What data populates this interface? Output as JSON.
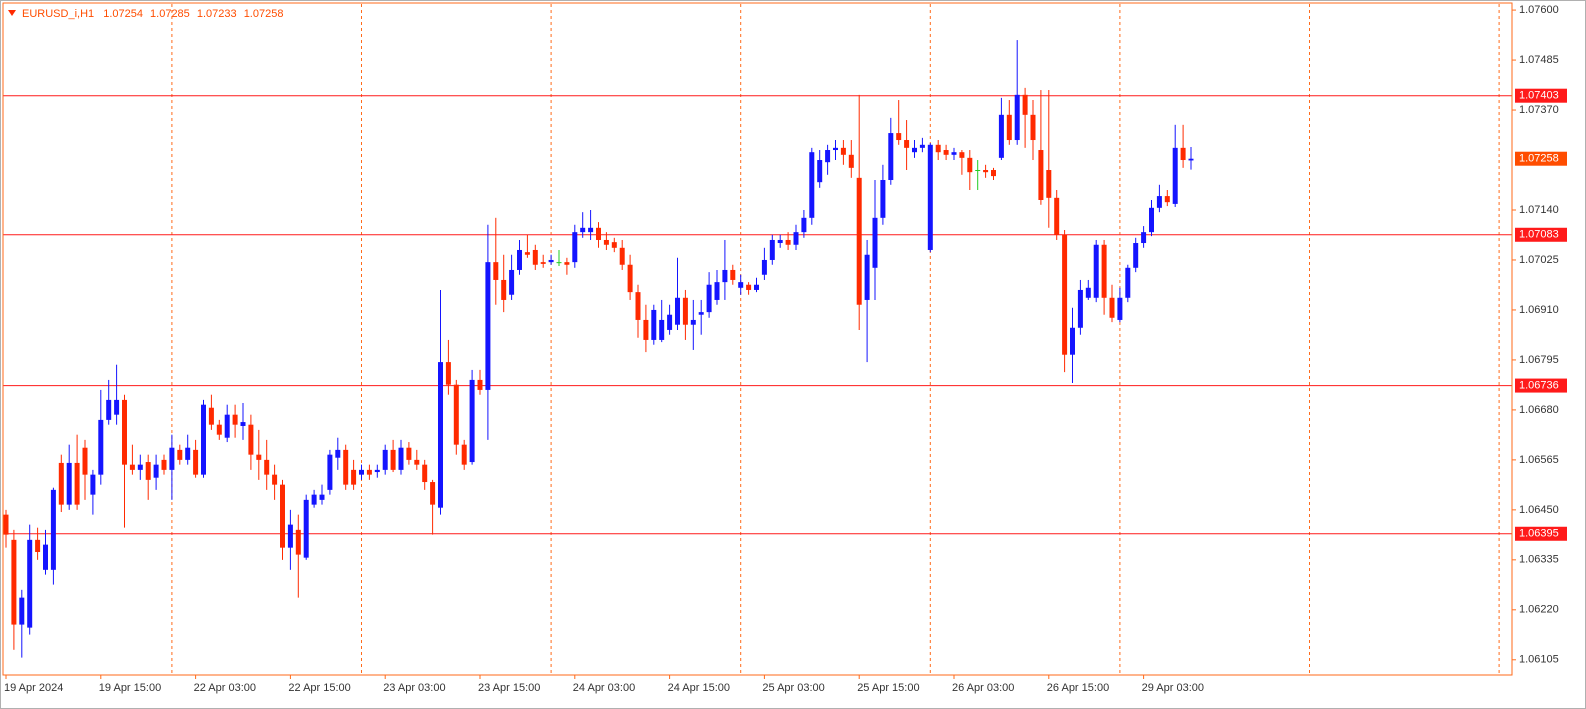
{
  "chart_data": {
    "type": "candlestick",
    "symbol": "EURUSD_i,H1",
    "categories": [
      "19 Apr 2024",
      null,
      null,
      null,
      null,
      null,
      null,
      null,
      null,
      null,
      null,
      null,
      "19 Apr 15:00",
      null,
      null,
      null,
      null,
      null,
      null,
      null,
      null,
      null,
      null,
      null,
      "22 Apr 03:00",
      null,
      null,
      null,
      null,
      null,
      null,
      null,
      null,
      null,
      null,
      null,
      "22 Apr 15:00",
      null,
      null,
      null,
      null,
      null,
      null,
      null,
      null,
      null,
      null,
      null,
      "23 Apr 03:00",
      null,
      null,
      null,
      null,
      null,
      null,
      null,
      null,
      null,
      null,
      null,
      "23 Apr 15:00",
      null,
      null,
      null,
      null,
      null,
      null,
      null,
      null,
      null,
      null,
      null,
      "24 Apr 03:00",
      null,
      null,
      null,
      null,
      null,
      null,
      null,
      null,
      null,
      null,
      null,
      "24 Apr 15:00",
      null,
      null,
      null,
      null,
      null,
      null,
      null,
      null,
      null,
      null,
      null,
      "25 Apr 03:00",
      null,
      null,
      null,
      null,
      null,
      null,
      null,
      null,
      null,
      null,
      null,
      "25 Apr 15:00",
      null,
      null,
      null,
      null,
      null,
      null,
      null,
      null,
      null,
      null,
      null,
      "26 Apr 03:00",
      null,
      null,
      null,
      null,
      null,
      null,
      null,
      null,
      null,
      null,
      null,
      "26 Apr 15:00",
      null,
      null,
      null,
      null,
      null,
      null,
      null,
      null,
      null,
      null,
      null,
      "29 Apr 03:00",
      null,
      null,
      null,
      null,
      null,
      null
    ],
    "open": [
      1.06439,
      1.06381,
      1.06186,
      1.06179,
      1.06381,
      1.06312,
      1.06312,
      1.06558,
      1.06462,
      1.06558,
      1.06593,
      1.06485,
      1.06531,
      1.06657,
      1.06669,
      1.06703,
      1.06554,
      1.06542,
      1.0656,
      1.06524,
      1.06565,
      1.06542,
      1.06588,
      1.06565,
      1.06588,
      1.06531,
      1.06685,
      1.06646,
      1.06616,
      1.06669,
      1.06643,
      1.06646,
      1.06577,
      1.06565,
      1.06531,
      1.06508,
      1.06363,
      1.06404,
      1.0634,
      1.06462,
      1.06473,
      1.06496,
      1.0657,
      1.06588,
      1.06542,
      1.06531,
      1.06542,
      1.06537,
      1.06542,
      1.06588,
      1.06542,
      1.06593,
      1.06565,
      1.06554,
      1.06514,
      1.06455,
      1.0679,
      1.06738,
      1.066,
      1.0656,
      1.06749,
      1.06726,
      1.0702,
      1.06979,
      1.06945,
      1.07002,
      1.07043,
      1.07048,
      1.0702,
      1.0702,
      1.0702,
      1.0702,
      1.0702,
      1.07089,
      1.07089,
      1.07099,
      1.07071,
      1.07066,
      1.07053,
      1.07014,
      1.06951,
      1.06887,
      1.06841,
      1.06841,
      1.06864,
      1.06876,
      1.06938,
      1.06876,
      1.06899,
      1.06905,
      1.06933,
      1.06974,
      1.07002,
      1.06961,
      1.06968,
      1.06956,
      1.06991,
      1.07025,
      1.07064,
      1.07071,
      1.0706,
      1.07089,
      1.07122,
      1.07204,
      1.0725,
      1.07278,
      1.07283,
      1.07267,
      1.07214,
      1.06933,
      1.07007,
      1.07122,
      1.07209,
      1.07317,
      1.07301,
      1.07273,
      1.07283,
      1.07048,
      1.0729,
      1.07278,
      1.07267,
      1.07273,
      1.0726,
      1.07232,
      1.07232,
      1.07232,
      1.0726,
      1.07359,
      1.07301,
      1.07405,
      1.07359,
      1.07278,
      1.07232,
      1.07168,
      1.07083,
      1.06807,
      1.06869,
      1.06938,
      1.06938,
      1.0706,
      1.06938,
      1.06887,
      1.06938,
      1.07007,
      1.07064,
      1.07089,
      1.07145,
      1.07172,
      1.07154,
      1.07283,
      1.07254
    ],
    "high": [
      1.0645,
      1.06404,
      1.06266,
      1.06416,
      1.06409,
      1.06404,
      1.06501,
      1.06577,
      1.066,
      1.06623,
      1.06611,
      1.06542,
      1.06726,
      1.06749,
      1.06784,
      1.06715,
      1.066,
      1.06577,
      1.06577,
      1.06577,
      1.06577,
      1.06623,
      1.066,
      1.06623,
      1.06611,
      1.06703,
      1.06715,
      1.06657,
      1.06692,
      1.06692,
      1.06696,
      1.06669,
      1.06634,
      1.06611,
      1.06554,
      1.06519,
      1.0645,
      1.06439,
      1.06485,
      1.06496,
      1.06508,
      1.06588,
      1.06616,
      1.066,
      1.06565,
      1.06554,
      1.06554,
      1.06554,
      1.066,
      1.06611,
      1.06611,
      1.06606,
      1.06588,
      1.06565,
      1.06519,
      1.06956,
      1.06841,
      1.06749,
      1.06611,
      1.06772,
      1.06772,
      1.07106,
      1.07122,
      1.07037,
      1.07037,
      1.07071,
      1.07083,
      1.0706,
      1.07037,
      1.07037,
      1.07048,
      1.0703,
      1.07106,
      1.07135,
      1.0714,
      1.07112,
      1.07089,
      1.07076,
      1.07071,
      1.07037,
      1.06968,
      1.06922,
      1.06922,
      1.06933,
      1.06922,
      1.0703,
      1.06956,
      1.06933,
      1.06933,
      1.06997,
      1.07002,
      1.07071,
      1.07014,
      1.06991,
      1.06974,
      1.06984,
      1.07053,
      1.07083,
      1.07083,
      1.07089,
      1.07106,
      1.0714,
      1.07283,
      1.07278,
      1.0729,
      1.07301,
      1.07301,
      1.07301,
      1.07405,
      1.07071,
      1.07209,
      1.07244,
      1.07352,
      1.07393,
      1.07347,
      1.07301,
      1.07306,
      1.07294,
      1.07301,
      1.0729,
      1.07283,
      1.07278,
      1.07278,
      1.07255,
      1.07244,
      1.07237,
      1.07398,
      1.07393,
      1.07531,
      1.07421,
      1.07393,
      1.07416,
      1.07416,
      1.07186,
      1.07094,
      1.06915,
      1.06979,
      1.06979,
      1.07071,
      1.07071,
      1.06968,
      1.06961,
      1.07014,
      1.07076,
      1.07103,
      1.07163,
      1.07198,
      1.07186,
      1.07336,
      1.07336,
      1.07285
    ],
    "low": [
      1.06363,
      1.06128,
      1.0611,
      1.06163,
      1.06335,
      1.06301,
      1.06278,
      1.06445,
      1.0645,
      1.0645,
      1.06473,
      1.06439,
      1.06508,
      1.06646,
      1.06646,
      1.06409,
      1.06531,
      1.06519,
      1.06473,
      1.06496,
      1.06531,
      1.06473,
      1.06554,
      1.06554,
      1.06524,
      1.06524,
      1.06634,
      1.06611,
      1.06606,
      1.06616,
      1.06611,
      1.06542,
      1.06519,
      1.06496,
      1.06473,
      1.06335,
      1.06312,
      1.06248,
      1.06335,
      1.06455,
      1.06462,
      1.06485,
      1.06542,
      1.06496,
      1.06496,
      1.06519,
      1.06519,
      1.06524,
      1.06531,
      1.06537,
      1.06531,
      1.06554,
      1.06542,
      1.06496,
      1.06393,
      1.06439,
      1.06715,
      1.06577,
      1.06542,
      1.06554,
      1.06715,
      1.06611,
      1.06922,
      1.06905,
      1.06933,
      1.06991,
      1.0703,
      1.07002,
      1.07007,
      1.07014,
      1.07011,
      1.06991,
      1.07007,
      1.07076,
      1.07071,
      1.07053,
      1.07048,
      1.07043,
      1.07002,
      1.06933,
      1.06846,
      1.06813,
      1.0683,
      1.06836,
      1.06853,
      1.06864,
      1.06841,
      1.06818,
      1.06853,
      1.06892,
      1.06922,
      1.06933,
      1.06968,
      1.06945,
      1.06945,
      1.06951,
      1.06979,
      1.07014,
      1.07053,
      1.07048,
      1.07048,
      1.07076,
      1.07106,
      1.07191,
      1.07221,
      1.07255,
      1.07244,
      1.07214,
      1.06864,
      1.0679,
      1.06933,
      1.07106,
      1.07198,
      1.0729,
      1.07232,
      1.0726,
      1.07273,
      1.07043,
      1.07255,
      1.07255,
      1.07255,
      1.07221,
      1.07186,
      1.07186,
      1.07214,
      1.07209,
      1.07255,
      1.0729,
      1.0729,
      1.07283,
      1.07255,
      1.07152,
      1.07099,
      1.07071,
      1.06767,
      1.06742,
      1.06853,
      1.06933,
      1.06928,
      1.06899,
      1.06882,
      1.06882,
      1.06928,
      1.06997,
      1.07053,
      1.0708,
      1.07135,
      1.07149,
      1.07147,
      1.07237,
      1.07233
    ],
    "close": [
      1.06393,
      1.06186,
      1.06248,
      1.06381,
      1.06353,
      1.0637,
      1.06496,
      1.06462,
      1.06558,
      1.06462,
      1.06531,
      1.06531,
      1.06657,
      1.06703,
      1.06703,
      1.06554,
      1.06542,
      1.06554,
      1.06519,
      1.06554,
      1.06542,
      1.06593,
      1.06565,
      1.06593,
      1.06531,
      1.06692,
      1.06646,
      1.06623,
      1.06669,
      1.06646,
      1.06652,
      1.06577,
      1.06565,
      1.06531,
      1.06508,
      1.06363,
      1.06416,
      1.06347,
      1.06473,
      1.06485,
      1.06485,
      1.06577,
      1.06588,
      1.06508,
      1.06508,
      1.06542,
      1.06531,
      1.06542,
      1.06588,
      1.06542,
      1.06593,
      1.06565,
      1.06554,
      1.06514,
      1.06462,
      1.0679,
      1.06738,
      1.066,
      1.06554,
      1.06749,
      1.06726,
      1.0702,
      1.06979,
      1.06933,
      1.07002,
      1.07048,
      1.07037,
      1.07014,
      1.07016,
      1.07025,
      1.0702,
      1.07014,
      1.07089,
      1.07099,
      1.07099,
      1.07071,
      1.0706,
      1.07053,
      1.07014,
      1.06951,
      1.06887,
      1.06841,
      1.0691,
      1.06887,
      1.06899,
      1.06938,
      1.06876,
      1.06887,
      1.06905,
      1.06968,
      1.06974,
      1.07002,
      1.06979,
      1.06974,
      1.06956,
      1.06968,
      1.07025,
      1.07071,
      1.07071,
      1.0706,
      1.07089,
      1.07122,
      1.07273,
      1.07255,
      1.07278,
      1.07283,
      1.07267,
      1.07237,
      1.06922,
      1.07037,
      1.07122,
      1.07209,
      1.07317,
      1.07301,
      1.07283,
      1.07283,
      1.0729,
      1.0729,
      1.07273,
      1.07267,
      1.07273,
      1.0726,
      1.07227,
      1.07232,
      1.07227,
      1.07218,
      1.07359,
      1.07301,
      1.07405,
      1.07359,
      1.07301,
      1.07163,
      1.07168,
      1.07083,
      1.06807,
      1.06869,
      1.06956,
      1.06961,
      1.0706,
      1.06938,
      1.06892,
      1.06938,
      1.07007,
      1.07064,
      1.07089,
      1.07145,
      1.07172,
      1.07158,
      1.07283,
      1.07255,
      1.07258
    ],
    "up_color": "#1414ff",
    "down_color": "#ff2a00",
    "doji_color": "#22cc22",
    "ylim": [
      1.0607,
      1.07614
    ],
    "yticks": [
      {
        "value": 1.076,
        "label": "1.07600"
      },
      1.07485,
      {
        "value": 1.0737,
        "label": "1.07370"
      },
      {
        "value": 1.0714,
        "label": "1.07140"
      },
      1.07025,
      {
        "value": 1.0691,
        "label": "1.06910"
      },
      1.06795,
      {
        "value": 1.0668,
        "label": "1.06680"
      },
      1.06565,
      {
        "value": 1.0645,
        "label": "1.06450"
      },
      1.06335,
      {
        "value": 1.0622,
        "label": "1.06220"
      },
      1.06105
    ],
    "hlines": {
      "values": [
        1.07403,
        1.07083,
        1.06736,
        1.06395
      ],
      "color": "#ff1a1a"
    },
    "last_price_color": "#ff4d00",
    "axis_color": "#ff6a1a"
  }
}
